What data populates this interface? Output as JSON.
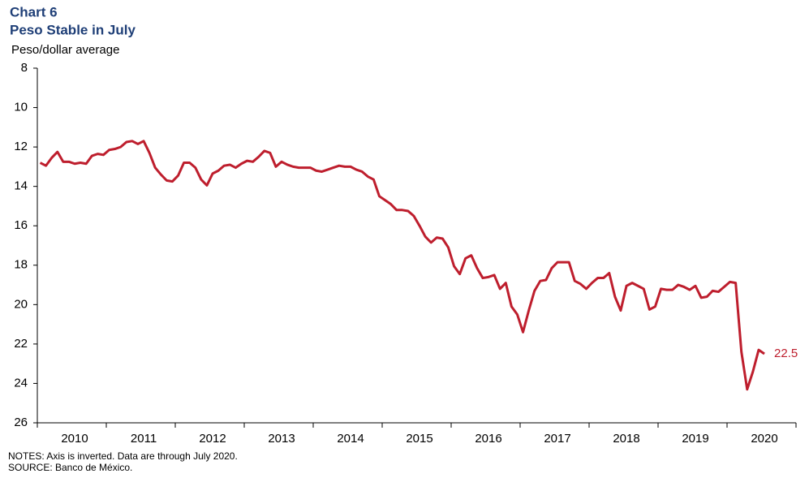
{
  "chart_data": {
    "type": "line",
    "title": "Chart 6",
    "subtitle": "Peso Stable in July",
    "y_label": "Peso/dollar average",
    "notes": [
      "NOTES: Axis is inverted. Data are through July 2020.",
      "SOURCE: Banco de México."
    ],
    "y_inverted": true,
    "ylim": [
      8,
      26
    ],
    "yticks": [
      8,
      10,
      12,
      14,
      16,
      18,
      20,
      22,
      24,
      26
    ],
    "categories": [
      null,
      null,
      null,
      null,
      null,
      null,
      "2010",
      null,
      null,
      null,
      null,
      null,
      null,
      null,
      null,
      null,
      null,
      null,
      "2011",
      null,
      null,
      null,
      null,
      null,
      null,
      null,
      null,
      null,
      null,
      null,
      "2012",
      null,
      null,
      null,
      null,
      null,
      null,
      null,
      null,
      null,
      null,
      null,
      "2013",
      null,
      null,
      null,
      null,
      null,
      null,
      null,
      null,
      null,
      null,
      null,
      "2014",
      null,
      null,
      null,
      null,
      null,
      null,
      null,
      null,
      null,
      null,
      null,
      "2015",
      null,
      null,
      null,
      null,
      null,
      null,
      null,
      null,
      null,
      null,
      null,
      "2016",
      null,
      null,
      null,
      null,
      null,
      null,
      null,
      null,
      null,
      null,
      null,
      "2017",
      null,
      null,
      null,
      null,
      null,
      null,
      null,
      null,
      null,
      null,
      null,
      "2018",
      null,
      null,
      null,
      null,
      null,
      null,
      null,
      null,
      null,
      null,
      null,
      "2019",
      null,
      null,
      null,
      null,
      null,
      null,
      null,
      null,
      null,
      null,
      null,
      "2020"
    ],
    "series": [
      {
        "color": "#be1e2d",
        "values": [
          12.8,
          12.95,
          12.55,
          12.25,
          12.75,
          12.75,
          12.85,
          12.8,
          12.85,
          12.45,
          12.35,
          12.4,
          12.15,
          12.1,
          12.0,
          11.75,
          11.7,
          11.85,
          11.7,
          12.3,
          13.05,
          13.4,
          13.7,
          13.75,
          13.45,
          12.8,
          12.8,
          13.05,
          13.65,
          13.95,
          13.35,
          13.2,
          12.95,
          12.9,
          13.05,
          12.85,
          12.7,
          12.75,
          12.5,
          12.2,
          12.3,
          13.0,
          12.75,
          12.9,
          13.0,
          13.05,
          13.05,
          13.05,
          13.2,
          13.25,
          13.15,
          13.05,
          12.95,
          13.0,
          13.0,
          13.15,
          13.25,
          13.5,
          13.65,
          14.5,
          14.7,
          14.9,
          15.2,
          15.2,
          15.25,
          15.5,
          16.0,
          16.55,
          16.85,
          16.6,
          16.65,
          17.1,
          18.05,
          18.45,
          17.65,
          17.5,
          18.15,
          18.65,
          18.6,
          18.5,
          19.2,
          18.9,
          20.1,
          20.5,
          21.4,
          20.3,
          19.3,
          18.8,
          18.75,
          18.15,
          17.85,
          17.85,
          17.85,
          18.8,
          18.95,
          19.2,
          18.9,
          18.65,
          18.65,
          18.4,
          19.6,
          20.3,
          19.05,
          18.9,
          19.05,
          19.2,
          20.25,
          20.1,
          19.2,
          19.25,
          19.25,
          19.0,
          19.1,
          19.25,
          19.05,
          19.65,
          19.6,
          19.3,
          19.35,
          19.1,
          18.85,
          18.9,
          22.4,
          24.3,
          23.4,
          22.3,
          22.5
        ]
      }
    ]
  }
}
